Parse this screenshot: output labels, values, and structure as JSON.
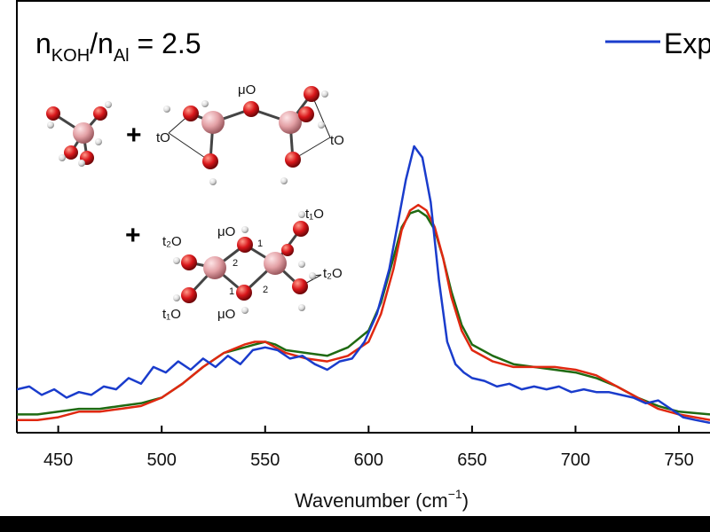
{
  "chart_data": {
    "type": "line",
    "title": "",
    "xlabel": "Wavenumber (cm⁻¹)",
    "xlabel_main": "Wavenumber (cm",
    "xlabel_sup": "−1",
    "xlabel_close": ")",
    "ylabel": "",
    "xlim": [
      430,
      765
    ],
    "ylim": [
      0,
      1
    ],
    "xticks": [
      450,
      500,
      550,
      600,
      650,
      700,
      750
    ],
    "grid": false,
    "legend_placement": "top-right",
    "condition": {
      "n1": "n",
      "sub1": "KOH",
      "slash": "/n",
      "sub2": "Al",
      "rest": " = 2.5"
    },
    "series": [
      {
        "name": "Exp",
        "color": "#1a3ccc",
        "x": [
          430,
          436,
          442,
          448,
          454,
          460,
          466,
          472,
          478,
          484,
          490,
          496,
          502,
          508,
          514,
          520,
          526,
          532,
          538,
          544,
          550,
          556,
          562,
          568,
          574,
          580,
          586,
          592,
          598,
          604,
          610,
          614,
          618,
          622,
          626,
          630,
          634,
          638,
          642,
          646,
          650,
          656,
          662,
          668,
          674,
          680,
          686,
          692,
          698,
          704,
          710,
          716,
          722,
          728,
          734,
          740,
          746,
          752,
          758,
          765
        ],
        "y": [
          0.13,
          0.14,
          0.11,
          0.13,
          0.1,
          0.12,
          0.11,
          0.14,
          0.13,
          0.17,
          0.15,
          0.21,
          0.19,
          0.23,
          0.2,
          0.24,
          0.21,
          0.25,
          0.22,
          0.27,
          0.28,
          0.27,
          0.24,
          0.25,
          0.22,
          0.2,
          0.23,
          0.24,
          0.3,
          0.4,
          0.56,
          0.72,
          0.88,
          1.0,
          0.96,
          0.8,
          0.52,
          0.3,
          0.22,
          0.19,
          0.17,
          0.16,
          0.14,
          0.15,
          0.13,
          0.14,
          0.13,
          0.14,
          0.12,
          0.13,
          0.12,
          0.12,
          0.11,
          0.1,
          0.08,
          0.09,
          0.06,
          0.03,
          0.02,
          0.01
        ]
      },
      {
        "name": "",
        "color": "#e02810",
        "x": [
          430,
          440,
          450,
          460,
          470,
          480,
          490,
          500,
          510,
          520,
          530,
          540,
          545,
          550,
          555,
          560,
          570,
          580,
          590,
          600,
          606,
          612,
          616,
          620,
          624,
          628,
          632,
          636,
          640,
          645,
          650,
          660,
          670,
          680,
          690,
          700,
          710,
          720,
          730,
          740,
          750,
          765
        ],
        "y": [
          0.02,
          0.02,
          0.03,
          0.05,
          0.05,
          0.06,
          0.07,
          0.1,
          0.15,
          0.21,
          0.26,
          0.29,
          0.3,
          0.3,
          0.28,
          0.26,
          0.24,
          0.23,
          0.25,
          0.3,
          0.4,
          0.56,
          0.7,
          0.77,
          0.79,
          0.77,
          0.71,
          0.6,
          0.46,
          0.34,
          0.27,
          0.23,
          0.21,
          0.21,
          0.21,
          0.2,
          0.18,
          0.14,
          0.1,
          0.06,
          0.04,
          0.02
        ]
      },
      {
        "name": "",
        "color": "#1f6a12",
        "x": [
          430,
          440,
          450,
          460,
          470,
          480,
          490,
          500,
          510,
          520,
          530,
          540,
          545,
          550,
          555,
          560,
          570,
          580,
          590,
          600,
          606,
          612,
          616,
          620,
          624,
          628,
          632,
          636,
          640,
          645,
          650,
          660,
          670,
          680,
          690,
          700,
          710,
          720,
          730,
          740,
          750,
          765
        ],
        "y": [
          0.04,
          0.04,
          0.05,
          0.06,
          0.06,
          0.07,
          0.08,
          0.1,
          0.15,
          0.21,
          0.26,
          0.28,
          0.29,
          0.3,
          0.29,
          0.27,
          0.26,
          0.25,
          0.28,
          0.34,
          0.44,
          0.6,
          0.71,
          0.76,
          0.77,
          0.75,
          0.7,
          0.6,
          0.48,
          0.36,
          0.29,
          0.25,
          0.22,
          0.21,
          0.2,
          0.19,
          0.17,
          0.14,
          0.1,
          0.07,
          0.05,
          0.04
        ]
      }
    ]
  },
  "figure": {
    "colors": {
      "oxygen": "#d8161a",
      "aluminum": "#e7a6aa",
      "hydrogen": "#e8e8e8",
      "bond": "#444444"
    },
    "labels": {
      "muO_top": "μO",
      "tO_left": "tO",
      "tO_right": "tO",
      "muO_ring_top": "μO",
      "muO_ring_bottom": "μO",
      "t1O_top": "t₁O",
      "t2O_left": "t₂O",
      "t1O_bottom": "t₁O",
      "t2O_right": "t₂O",
      "ring_1a": "1",
      "ring_2a": "2",
      "ring_1b": "1",
      "ring_2b": "2"
    },
    "plus_1": "+",
    "plus_2": "+"
  }
}
